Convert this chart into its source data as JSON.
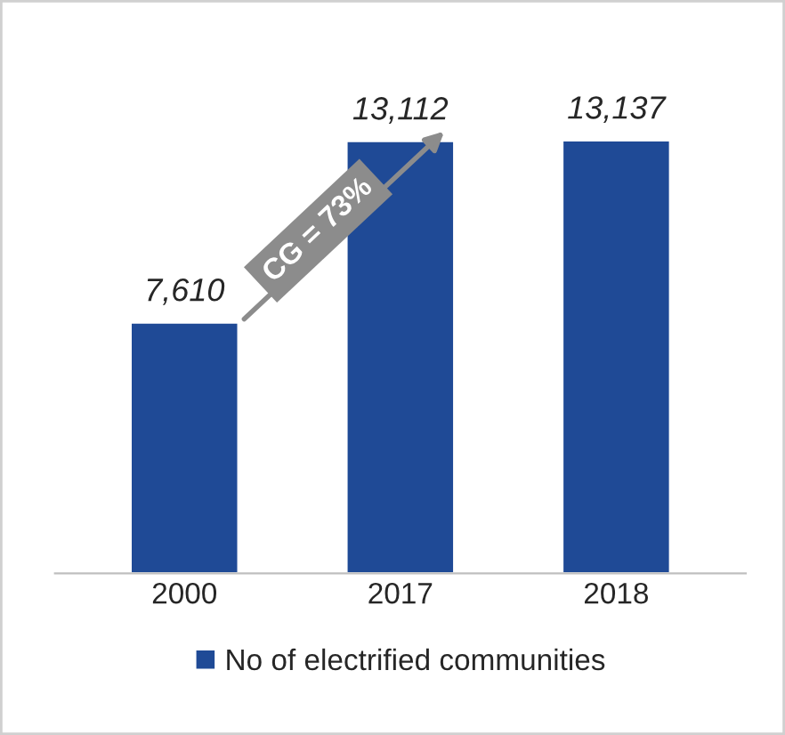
{
  "chart_data": {
    "type": "bar",
    "categories": [
      "2000",
      "2017",
      "2018"
    ],
    "series": [
      {
        "name": "No of electrified communities",
        "color": "#1f4a96",
        "values": [
          7610,
          13112,
          13137
        ],
        "value_labels": [
          "7,610",
          "13,112",
          "13,137"
        ]
      }
    ],
    "annotations": [
      "CG = 73%"
    ],
    "tick_labels": "x",
    "legend": "bottom",
    "grid": false
  }
}
